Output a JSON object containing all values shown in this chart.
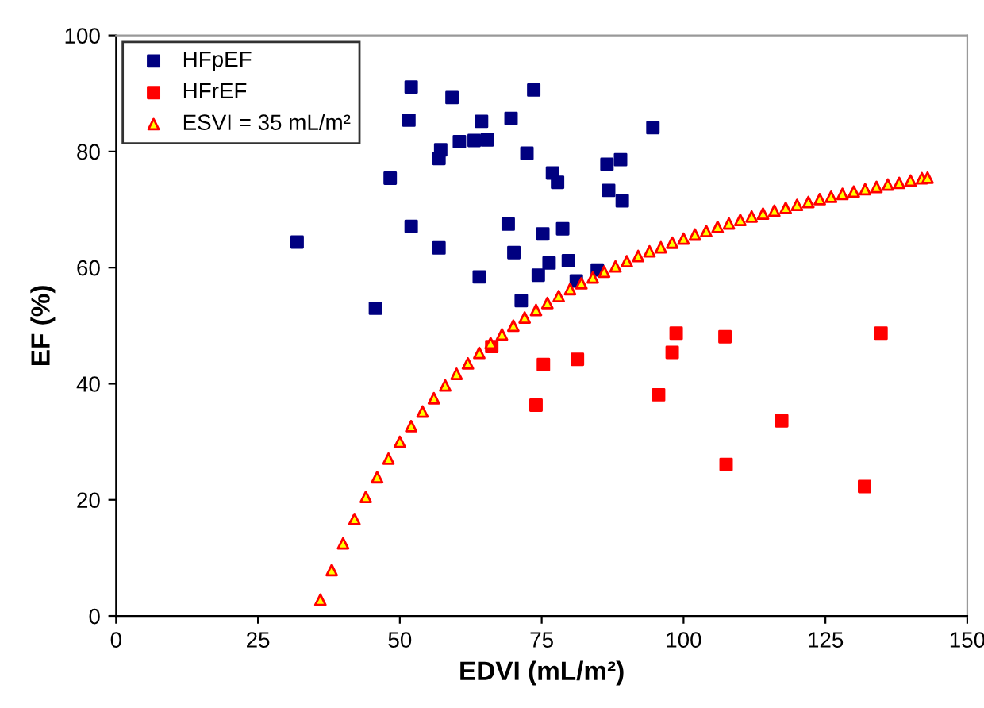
{
  "chart_data": {
    "type": "scatter",
    "xlabel": "EDVI (mL/m²)",
    "ylabel": "EF (%)",
    "xlim": [
      0,
      150
    ],
    "ylim": [
      0,
      100
    ],
    "xticks": [
      0,
      25,
      50,
      75,
      100,
      125,
      150
    ],
    "yticks": [
      0,
      20,
      40,
      60,
      80,
      100
    ],
    "legend": "top left",
    "grid": false,
    "series": [
      {
        "name": "HFpEF",
        "color": "#000080",
        "marker": "square",
        "x": [
          52.0,
          59.2,
          73.6,
          51.6,
          64.4,
          69.6,
          94.6,
          57.2,
          56.9,
          60.5,
          63.1,
          65.4,
          72.4,
          86.5,
          88.9,
          76.9,
          77.8,
          86.8,
          89.2,
          48.3,
          31.9,
          52.0,
          56.9,
          69.1,
          75.2,
          78.7,
          70.1,
          76.3,
          79.7,
          64.0,
          74.4,
          81.1,
          84.8,
          71.4,
          45.7
        ],
        "values": [
          91.1,
          89.3,
          90.6,
          85.4,
          85.2,
          85.7,
          84.1,
          80.3,
          78.8,
          81.7,
          81.9,
          82.0,
          79.7,
          77.8,
          78.6,
          76.3,
          74.7,
          73.3,
          71.5,
          75.4,
          64.4,
          67.1,
          63.4,
          67.5,
          65.8,
          66.7,
          62.6,
          60.8,
          61.2,
          58.4,
          58.7,
          57.7,
          59.6,
          54.3,
          53.0
        ]
      },
      {
        "name": "HFrEF",
        "color": "#ff0000",
        "marker": "square",
        "x": [
          66.2,
          75.3,
          81.3,
          74.0,
          98.7,
          98.0,
          107.3,
          134.8,
          95.6,
          117.3,
          107.5,
          131.9
        ],
        "values": [
          46.4,
          43.3,
          44.2,
          36.3,
          48.7,
          45.4,
          48.1,
          48.7,
          38.1,
          33.6,
          26.1,
          22.3
        ]
      },
      {
        "name": "ESVI = 35 mL/m²",
        "color": "#ff0000",
        "marker": "triangle",
        "x": [
          36,
          38,
          40,
          42,
          44,
          46,
          48,
          50,
          52,
          54,
          56,
          58,
          60,
          62,
          64,
          66,
          68,
          70,
          72,
          74,
          76,
          78,
          80,
          82,
          84,
          86,
          88,
          90,
          92,
          94,
          96,
          98,
          100,
          102,
          104,
          106,
          108,
          110,
          112,
          114,
          116,
          118,
          120,
          122,
          124,
          126,
          128,
          130,
          132,
          134,
          136,
          138,
          140,
          142,
          143
        ],
        "values": [
          2.8,
          7.9,
          12.5,
          16.7,
          20.5,
          23.9,
          27.1,
          30.0,
          32.7,
          35.2,
          37.5,
          39.7,
          41.7,
          43.5,
          45.3,
          47.0,
          48.5,
          50.0,
          51.4,
          52.7,
          53.9,
          55.1,
          56.3,
          57.3,
          58.3,
          59.3,
          60.2,
          61.1,
          62.0,
          62.8,
          63.5,
          64.3,
          65.0,
          65.7,
          66.3,
          67.0,
          67.6,
          68.2,
          68.8,
          69.3,
          69.8,
          70.3,
          70.8,
          71.3,
          71.8,
          72.2,
          72.7,
          73.1,
          73.5,
          73.9,
          74.3,
          74.6,
          75.0,
          75.4,
          75.5
        ]
      }
    ]
  }
}
